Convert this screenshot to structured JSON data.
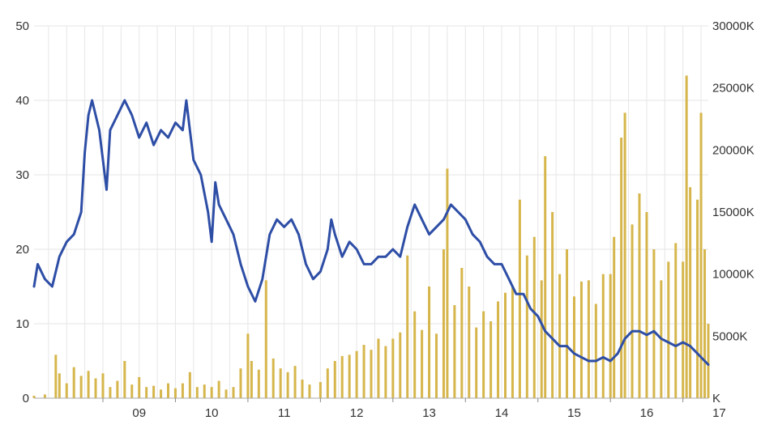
{
  "chart_data": {
    "type": "line+bar",
    "x_tick_labels": [
      "09",
      "10",
      "11",
      "12",
      "13",
      "14",
      "15",
      "16",
      "17"
    ],
    "x_tick_years": [
      2009,
      2010,
      2011,
      2012,
      2013,
      2014,
      2015,
      2016,
      2017
    ],
    "xlim": [
      2008.05,
      2017.35
    ],
    "y_left_tick_labels": [
      "0",
      "10",
      "20",
      "30",
      "40",
      "50"
    ],
    "y_left_lim": [
      0,
      50
    ],
    "y_right_tick_labels": [
      "K",
      "5000K",
      "10000K",
      "15000K",
      "20000K",
      "25000K",
      "30000K"
    ],
    "y_right_lim": [
      0,
      30000
    ],
    "grid": true,
    "series": [
      {
        "kind": "line",
        "axis": "left",
        "color": "#2e4ea6",
        "points": [
          [
            2008.05,
            15
          ],
          [
            2008.1,
            18
          ],
          [
            2008.2,
            16
          ],
          [
            2008.3,
            15
          ],
          [
            2008.4,
            19
          ],
          [
            2008.5,
            21
          ],
          [
            2008.6,
            22
          ],
          [
            2008.7,
            25
          ],
          [
            2008.75,
            33
          ],
          [
            2008.8,
            38
          ],
          [
            2008.85,
            40
          ],
          [
            2008.95,
            36
          ],
          [
            2009.05,
            28
          ],
          [
            2009.1,
            36
          ],
          [
            2009.2,
            38
          ],
          [
            2009.3,
            40
          ],
          [
            2009.4,
            38
          ],
          [
            2009.5,
            35
          ],
          [
            2009.6,
            37
          ],
          [
            2009.7,
            34
          ],
          [
            2009.8,
            36
          ],
          [
            2009.9,
            35
          ],
          [
            2010.0,
            37
          ],
          [
            2010.1,
            36
          ],
          [
            2010.15,
            40
          ],
          [
            2010.2,
            36
          ],
          [
            2010.25,
            32
          ],
          [
            2010.35,
            30
          ],
          [
            2010.45,
            25
          ],
          [
            2010.5,
            21
          ],
          [
            2010.55,
            29
          ],
          [
            2010.6,
            26
          ],
          [
            2010.7,
            24
          ],
          [
            2010.8,
            22
          ],
          [
            2010.9,
            18
          ],
          [
            2011.0,
            15
          ],
          [
            2011.1,
            13
          ],
          [
            2011.2,
            16
          ],
          [
            2011.25,
            19
          ],
          [
            2011.3,
            22
          ],
          [
            2011.4,
            24
          ],
          [
            2011.5,
            23
          ],
          [
            2011.6,
            24
          ],
          [
            2011.7,
            22
          ],
          [
            2011.8,
            18
          ],
          [
            2011.9,
            16
          ],
          [
            2012.0,
            17
          ],
          [
            2012.1,
            20
          ],
          [
            2012.15,
            24
          ],
          [
            2012.2,
            22
          ],
          [
            2012.3,
            19
          ],
          [
            2012.4,
            21
          ],
          [
            2012.5,
            20
          ],
          [
            2012.6,
            18
          ],
          [
            2012.7,
            18
          ],
          [
            2012.8,
            19
          ],
          [
            2012.9,
            19
          ],
          [
            2013.0,
            20
          ],
          [
            2013.1,
            19
          ],
          [
            2013.2,
            23
          ],
          [
            2013.3,
            26
          ],
          [
            2013.4,
            24
          ],
          [
            2013.5,
            22
          ],
          [
            2013.6,
            23
          ],
          [
            2013.7,
            24
          ],
          [
            2013.8,
            26
          ],
          [
            2013.9,
            25
          ],
          [
            2014.0,
            24
          ],
          [
            2014.1,
            22
          ],
          [
            2014.2,
            21
          ],
          [
            2014.3,
            19
          ],
          [
            2014.4,
            18
          ],
          [
            2014.5,
            18
          ],
          [
            2014.6,
            16
          ],
          [
            2014.7,
            14
          ],
          [
            2014.8,
            14
          ],
          [
            2014.9,
            12
          ],
          [
            2015.0,
            11
          ],
          [
            2015.1,
            9
          ],
          [
            2015.2,
            8
          ],
          [
            2015.3,
            7
          ],
          [
            2015.4,
            7
          ],
          [
            2015.5,
            6
          ],
          [
            2015.6,
            5.5
          ],
          [
            2015.7,
            5
          ],
          [
            2015.8,
            5
          ],
          [
            2015.9,
            5.5
          ],
          [
            2016.0,
            5
          ],
          [
            2016.1,
            6
          ],
          [
            2016.2,
            8
          ],
          [
            2016.3,
            9
          ],
          [
            2016.4,
            9
          ],
          [
            2016.5,
            8.5
          ],
          [
            2016.6,
            9
          ],
          [
            2016.7,
            8
          ],
          [
            2016.8,
            7.5
          ],
          [
            2016.9,
            7
          ],
          [
            2017.0,
            7.5
          ],
          [
            2017.1,
            7
          ],
          [
            2017.2,
            6
          ],
          [
            2017.3,
            5
          ],
          [
            2017.35,
            4.5
          ]
        ]
      },
      {
        "kind": "bar",
        "axis": "right",
        "color": "#d6b64c",
        "points": [
          [
            2008.05,
            200
          ],
          [
            2008.2,
            300
          ],
          [
            2008.35,
            3500
          ],
          [
            2008.4,
            2000
          ],
          [
            2008.5,
            1200
          ],
          [
            2008.6,
            2500
          ],
          [
            2008.7,
            1800
          ],
          [
            2008.8,
            2200
          ],
          [
            2008.9,
            1600
          ],
          [
            2009.0,
            2000
          ],
          [
            2009.1,
            900
          ],
          [
            2009.2,
            1400
          ],
          [
            2009.3,
            3000
          ],
          [
            2009.4,
            1100
          ],
          [
            2009.5,
            1700
          ],
          [
            2009.6,
            900
          ],
          [
            2009.7,
            1000
          ],
          [
            2009.8,
            700
          ],
          [
            2009.9,
            1200
          ],
          [
            2010.0,
            800
          ],
          [
            2010.1,
            1200
          ],
          [
            2010.2,
            2100
          ],
          [
            2010.3,
            900
          ],
          [
            2010.4,
            1100
          ],
          [
            2010.5,
            900
          ],
          [
            2010.6,
            1400
          ],
          [
            2010.7,
            700
          ],
          [
            2010.8,
            900
          ],
          [
            2010.9,
            2400
          ],
          [
            2011.0,
            5200
          ],
          [
            2011.05,
            3000
          ],
          [
            2011.15,
            2300
          ],
          [
            2011.25,
            9500
          ],
          [
            2011.35,
            3200
          ],
          [
            2011.45,
            2400
          ],
          [
            2011.55,
            2100
          ],
          [
            2011.65,
            2600
          ],
          [
            2011.75,
            1500
          ],
          [
            2011.85,
            1100
          ],
          [
            2012.0,
            1300
          ],
          [
            2012.1,
            2400
          ],
          [
            2012.2,
            3000
          ],
          [
            2012.3,
            3400
          ],
          [
            2012.4,
            3500
          ],
          [
            2012.5,
            3800
          ],
          [
            2012.6,
            4300
          ],
          [
            2012.7,
            3900
          ],
          [
            2012.8,
            4800
          ],
          [
            2012.9,
            4200
          ],
          [
            2013.0,
            4800
          ],
          [
            2013.1,
            5300
          ],
          [
            2013.2,
            11500
          ],
          [
            2013.3,
            7000
          ],
          [
            2013.4,
            5500
          ],
          [
            2013.5,
            9000
          ],
          [
            2013.6,
            5200
          ],
          [
            2013.7,
            12000
          ],
          [
            2013.75,
            18500
          ],
          [
            2013.85,
            7500
          ],
          [
            2013.95,
            10500
          ],
          [
            2014.05,
            9000
          ],
          [
            2014.15,
            5700
          ],
          [
            2014.25,
            7000
          ],
          [
            2014.35,
            6200
          ],
          [
            2014.45,
            7800
          ],
          [
            2014.55,
            8500
          ],
          [
            2014.65,
            9000
          ],
          [
            2014.75,
            16000
          ],
          [
            2014.85,
            11500
          ],
          [
            2014.95,
            13000
          ],
          [
            2015.05,
            9500
          ],
          [
            2015.1,
            19500
          ],
          [
            2015.2,
            15000
          ],
          [
            2015.3,
            10000
          ],
          [
            2015.4,
            12000
          ],
          [
            2015.5,
            8200
          ],
          [
            2015.6,
            9400
          ],
          [
            2015.7,
            9500
          ],
          [
            2015.8,
            7600
          ],
          [
            2015.9,
            10000
          ],
          [
            2016.0,
            10000
          ],
          [
            2016.05,
            13000
          ],
          [
            2016.15,
            21000
          ],
          [
            2016.2,
            23000
          ],
          [
            2016.3,
            14000
          ],
          [
            2016.4,
            16500
          ],
          [
            2016.5,
            15000
          ],
          [
            2016.6,
            12000
          ],
          [
            2016.7,
            9500
          ],
          [
            2016.8,
            11000
          ],
          [
            2016.9,
            12500
          ],
          [
            2017.0,
            11000
          ],
          [
            2017.05,
            26000
          ],
          [
            2017.1,
            17000
          ],
          [
            2017.2,
            16000
          ],
          [
            2017.25,
            23000
          ],
          [
            2017.3,
            12000
          ],
          [
            2017.35,
            6000
          ]
        ]
      }
    ]
  }
}
